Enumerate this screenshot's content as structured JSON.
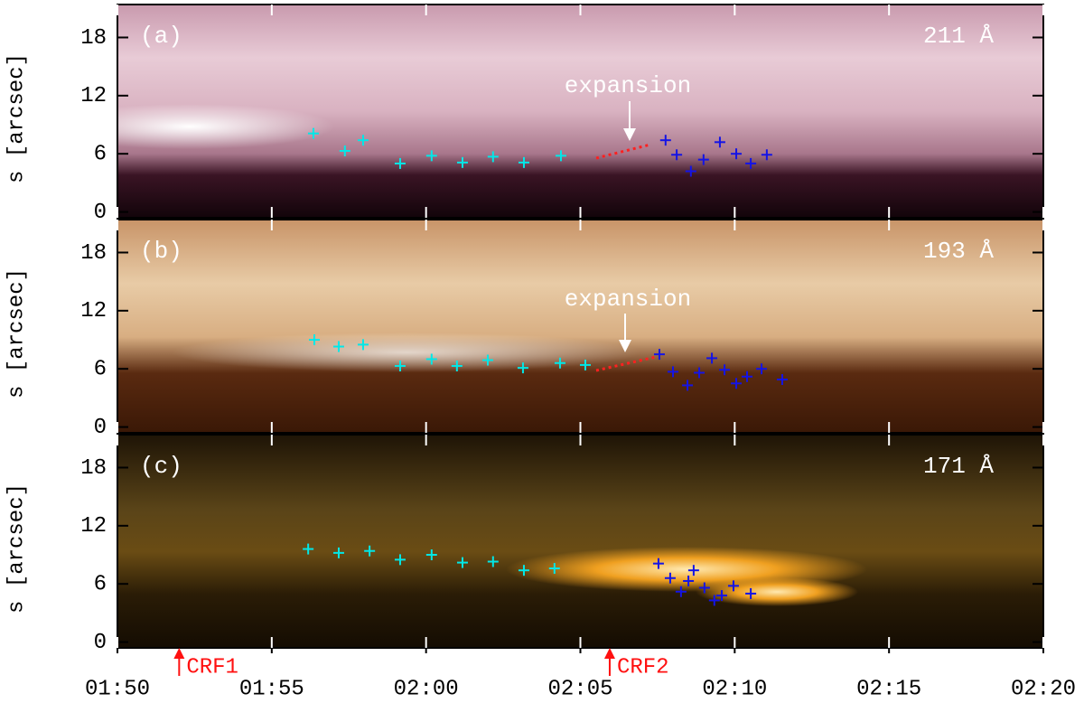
{
  "chart_data": [
    {
      "type": "scatter",
      "panel_label": "(a)",
      "wavelength": "211 Å",
      "ylabel": "s [arcsec]",
      "annotation": "expansion",
      "xlim": [
        0,
        30
      ],
      "xticks": [
        {
          "value": 0,
          "label": "01:50"
        },
        {
          "value": 5,
          "label": "01:55"
        },
        {
          "value": 10,
          "label": "02:00"
        },
        {
          "value": 15,
          "label": "02:05"
        },
        {
          "value": 20,
          "label": "02:10"
        },
        {
          "value": 25,
          "label": "02:15"
        },
        {
          "value": 30,
          "label": "02:20"
        }
      ],
      "ylim": [
        -0.6,
        21.4
      ],
      "yticks": [
        0,
        6,
        12,
        18
      ],
      "series": [
        {
          "color": "#00e8e8",
          "x": [
            6.35,
            7.37,
            7.96,
            9.16,
            10.18,
            11.18,
            12.17,
            13.17,
            14.37
          ],
          "values": [
            8.1,
            6.3,
            7.4,
            5.0,
            5.8,
            5.1,
            5.7,
            5.1,
            5.8
          ]
        },
        {
          "color": "#1414e6",
          "x": [
            17.76,
            18.12,
            18.58,
            18.99,
            19.52,
            20.05,
            20.52,
            21.04
          ],
          "values": [
            7.4,
            5.9,
            4.2,
            5.4,
            7.2,
            6.0,
            5.0,
            5.9
          ]
        }
      ]
    },
    {
      "type": "scatter",
      "panel_label": "(b)",
      "wavelength": "193 Å",
      "ylabel": "s [arcsec]",
      "annotation": "expansion",
      "xlim": [
        0,
        30
      ],
      "xticks": [
        {
          "value": 0,
          "label": "01:50"
        },
        {
          "value": 5,
          "label": "01:55"
        },
        {
          "value": 10,
          "label": "02:00"
        },
        {
          "value": 15,
          "label": "02:05"
        },
        {
          "value": 20,
          "label": "02:10"
        },
        {
          "value": 25,
          "label": "02:15"
        },
        {
          "value": 30,
          "label": "02:20"
        }
      ],
      "ylim": [
        -0.6,
        21.4
      ],
      "yticks": [
        0,
        6,
        12,
        18
      ],
      "series": [
        {
          "color": "#00e8e8",
          "x": [
            6.38,
            7.17,
            7.96,
            9.16,
            10.18,
            11.0,
            12.0,
            13.14,
            14.34,
            15.16
          ],
          "values": [
            9.0,
            8.3,
            8.5,
            6.3,
            7.0,
            6.3,
            6.9,
            6.1,
            6.6,
            6.4
          ]
        },
        {
          "color": "#1414e6",
          "x": [
            17.56,
            18.0,
            18.47,
            18.85,
            19.26,
            19.67,
            20.05,
            20.4,
            20.87,
            21.54
          ],
          "values": [
            7.5,
            5.7,
            4.3,
            5.6,
            7.1,
            5.9,
            4.5,
            5.2,
            6.0,
            4.9
          ]
        }
      ]
    },
    {
      "type": "scatter",
      "panel_label": "(c)",
      "wavelength": "171 Å",
      "ylabel": "s [arcsec]",
      "xlim": [
        0,
        30
      ],
      "xticks": [
        {
          "value": 0,
          "label": "01:50"
        },
        {
          "value": 5,
          "label": "01:55"
        },
        {
          "value": 10,
          "label": "02:00"
        },
        {
          "value": 15,
          "label": "02:05"
        },
        {
          "value": 20,
          "label": "02:10"
        },
        {
          "value": 25,
          "label": "02:15"
        },
        {
          "value": 30,
          "label": "02:20"
        }
      ],
      "ylim": [
        -0.6,
        21.4
      ],
      "yticks": [
        0,
        6,
        12,
        18
      ],
      "events": [
        {
          "label": "CRF1",
          "x": 2.0
        },
        {
          "label": "CRF2",
          "x": 15.95
        }
      ],
      "series": [
        {
          "color": "#00e8e8",
          "x": [
            6.18,
            7.17,
            8.17,
            9.16,
            10.18,
            11.18,
            12.17,
            13.17,
            14.16
          ],
          "values": [
            9.6,
            9.2,
            9.4,
            8.5,
            9.0,
            8.2,
            8.3,
            7.4,
            7.6
          ]
        },
        {
          "color": "#1414e6",
          "x": [
            17.53,
            17.91,
            18.26,
            18.5,
            18.67,
            19.02,
            19.34,
            19.58,
            19.96,
            20.52
          ],
          "values": [
            8.1,
            6.6,
            5.2,
            6.3,
            7.4,
            5.6,
            4.3,
            4.8,
            5.8,
            5.0
          ]
        }
      ]
    }
  ]
}
